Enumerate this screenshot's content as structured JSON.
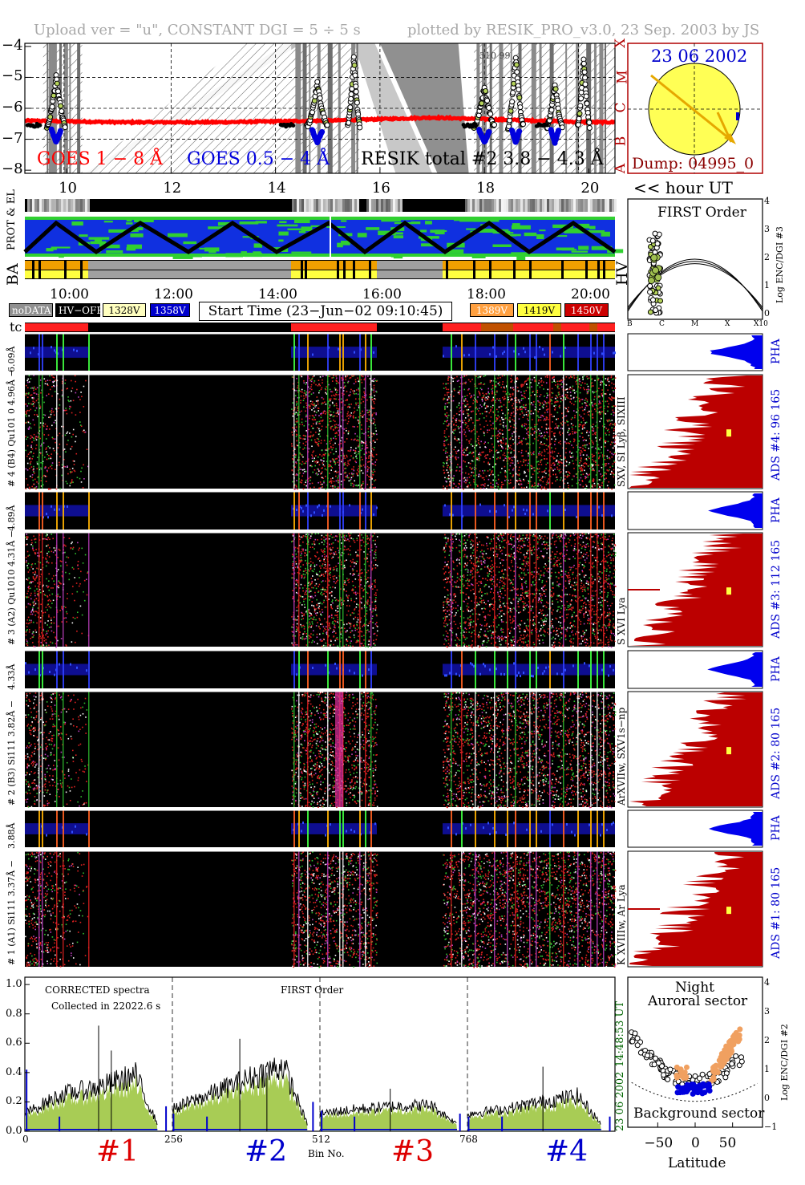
{
  "header": {
    "left": "Upload ver = \"u\", CONSTANT  DGI =   5 ÷   5 s",
    "right": "plotted by RESIK_PRO_v3.0, 23 Sep. 2003 by JS"
  },
  "goes_panel": {
    "legend_goes1": "GOES 1 − 8 Å",
    "legend_goes05": "GOES 0.5 − 4 Å",
    "legend_resik": "RESIK total #2  3.8 − 4.3 Å",
    "inset_text": "310  99",
    "y_ticks": [
      "−4",
      "−5",
      "−6",
      "−7",
      "−8"
    ],
    "class_labels": [
      "X",
      "M",
      "C",
      "B",
      "A"
    ],
    "x_ticks": [
      "10",
      "12",
      "14",
      "16",
      "18",
      "20"
    ],
    "x_tick_values": [
      10,
      12,
      14,
      16,
      18,
      20
    ],
    "x_range": [
      9.2,
      20.5
    ],
    "y_range": [
      -8.1,
      -3.9
    ],
    "colors": {
      "goes1": "#ff0000",
      "goes05": "#0000dd",
      "resik": "#000000",
      "shade": "#a0a0a0"
    }
  },
  "sun": {
    "date": "23 06 2002",
    "dump": "Dump: 04995_0",
    "fill": "#ffff55",
    "arrow": "#e6a800"
  },
  "hour_axis": {
    "label": "<< hour UT"
  },
  "status_rows": {
    "prot_label": "PROT & EL",
    "ba_label": "BA",
    "hv_label": "HV"
  },
  "time_axis": {
    "ticks": [
      "10:00",
      "12:00",
      "14:00",
      "16:00",
      "18:00",
      "20:00"
    ]
  },
  "legend_tags": [
    {
      "text": "noDATA",
      "bg": "#909090",
      "fg": "#ffffff"
    },
    {
      "text": "HV−OFF",
      "bg": "#000000",
      "fg": "#ffffff"
    },
    {
      "text": "1328V",
      "bg": "#ffffc0",
      "fg": "#000000"
    },
    {
      "text": "1358V",
      "bg": "#0000cc",
      "fg": "#ffffff"
    },
    {
      "text": "1389V",
      "bg": "#ffa040",
      "fg": "#ffffff"
    },
    {
      "text": "1419V",
      "bg": "#ffff40",
      "fg": "#000000"
    },
    {
      "text": "1450V",
      "bg": "#cc0000",
      "fg": "#ffffff"
    }
  ],
  "start_time": "Start Time (23−Jun−02 09:10:45)",
  "tc_label": "tc",
  "first_order_panel": {
    "title": "FIRST Order",
    "x_ticks": [
      "B",
      "C",
      "M",
      "X",
      "X10"
    ],
    "y_ticks": [
      "4",
      "3",
      "2",
      "1",
      "0"
    ],
    "y_label": "Log ENC/DGI #3"
  },
  "channels": [
    {
      "pha_label": "6.09Å",
      "main_label": "# 4 (B4) Qu101 0  4.96Å −",
      "line_label": "SXV, SI Lyβ, SIXIII",
      "ads": "ADS #4:   96 165",
      "pha": "PHA"
    },
    {
      "pha_label": "4.89Å",
      "main_label": "# 3 (A2) Qu1010  4.31Å −",
      "line_label": "S XVI Lya",
      "ads": "ADS #3:   112 165",
      "pha": "PHA"
    },
    {
      "pha_label": "4.33Å",
      "main_label": "# 2 (B3) Si111  3.82Å −",
      "line_label": "ArXVIIw, SXV1s−np",
      "ads": "ADS #2:   80 165",
      "pha": "PHA"
    },
    {
      "pha_label": "3.88Å",
      "main_label": "# 1 (A1) Si111  3.37Å −",
      "line_label": "K XVIIIw, Ar Lya",
      "ads": "ADS #1:   80 165",
      "pha": "PHA"
    }
  ],
  "spectrum_panel": {
    "text1": "CORRECTED spectra",
    "text2": "Collected in 22022.6 s",
    "text3": "FIRST Order",
    "y_ticks": [
      "1.0",
      "0.8",
      "0.6",
      "0.4",
      "0.2",
      "0.0"
    ],
    "x_ticks": [
      "0",
      "256",
      "512",
      "768"
    ],
    "x_label": "Bin No.",
    "side_time": "14:48:53 UT",
    "side_date": "23 06 2002",
    "channel_numbers": [
      "#1",
      "#2",
      "#3",
      "#4"
    ],
    "channel_colors": [
      "#dd0000",
      "#0000cc",
      "#dd0000",
      "#0000cc"
    ]
  },
  "latitude_panel": {
    "title1": "Night",
    "title2": "Auroral sector",
    "bottom": "Background sector",
    "x_ticks": [
      "−50",
      "0",
      "50"
    ],
    "x_label": "Latitude",
    "y_ticks": [
      "4",
      "3",
      "2",
      "1",
      "0",
      "−1"
    ],
    "y_label": "Log ENC/DGI #2"
  },
  "chart_data": [
    {
      "type": "line",
      "title": "",
      "xlabel": "hour UT",
      "ylabel": "",
      "xlim": [
        9.2,
        20.5
      ],
      "ylim": [
        -8.1,
        -3.9
      ],
      "series": [
        {
          "name": "GOES 1 − 8 Å",
          "x": [
            9.2,
            10,
            11,
            12,
            13,
            14,
            15,
            16,
            17,
            18,
            19,
            20,
            20.5
          ],
          "y": [
            -6.4,
            -6.42,
            -6.45,
            -6.45,
            -6.45,
            -6.42,
            -6.4,
            -6.35,
            -6.3,
            -6.35,
            -6.4,
            -6.45,
            -6.45
          ]
        }
      ]
    },
    {
      "type": "area",
      "title": "CORRECTED spectra",
      "xlabel": "Bin No.",
      "ylabel": "",
      "xlim": [
        0,
        1024
      ],
      "ylim": [
        0,
        1.05
      ],
      "series": [
        {
          "name": "#1",
          "x": [
            0,
            64,
            128,
            192,
            230
          ],
          "y": [
            0.12,
            0.25,
            0.3,
            0.38,
            0.05
          ]
        },
        {
          "name": "#2",
          "x": [
            256,
            320,
            384,
            448,
            490
          ],
          "y": [
            0.15,
            0.25,
            0.35,
            0.45,
            0.05
          ]
        },
        {
          "name": "#3",
          "x": [
            512,
            576,
            640,
            704,
            750
          ],
          "y": [
            0.12,
            0.15,
            0.17,
            0.18,
            0.05
          ]
        },
        {
          "name": "#4",
          "x": [
            768,
            832,
            896,
            960,
            1000
          ],
          "y": [
            0.12,
            0.15,
            0.2,
            0.24,
            0.05
          ]
        }
      ]
    }
  ]
}
